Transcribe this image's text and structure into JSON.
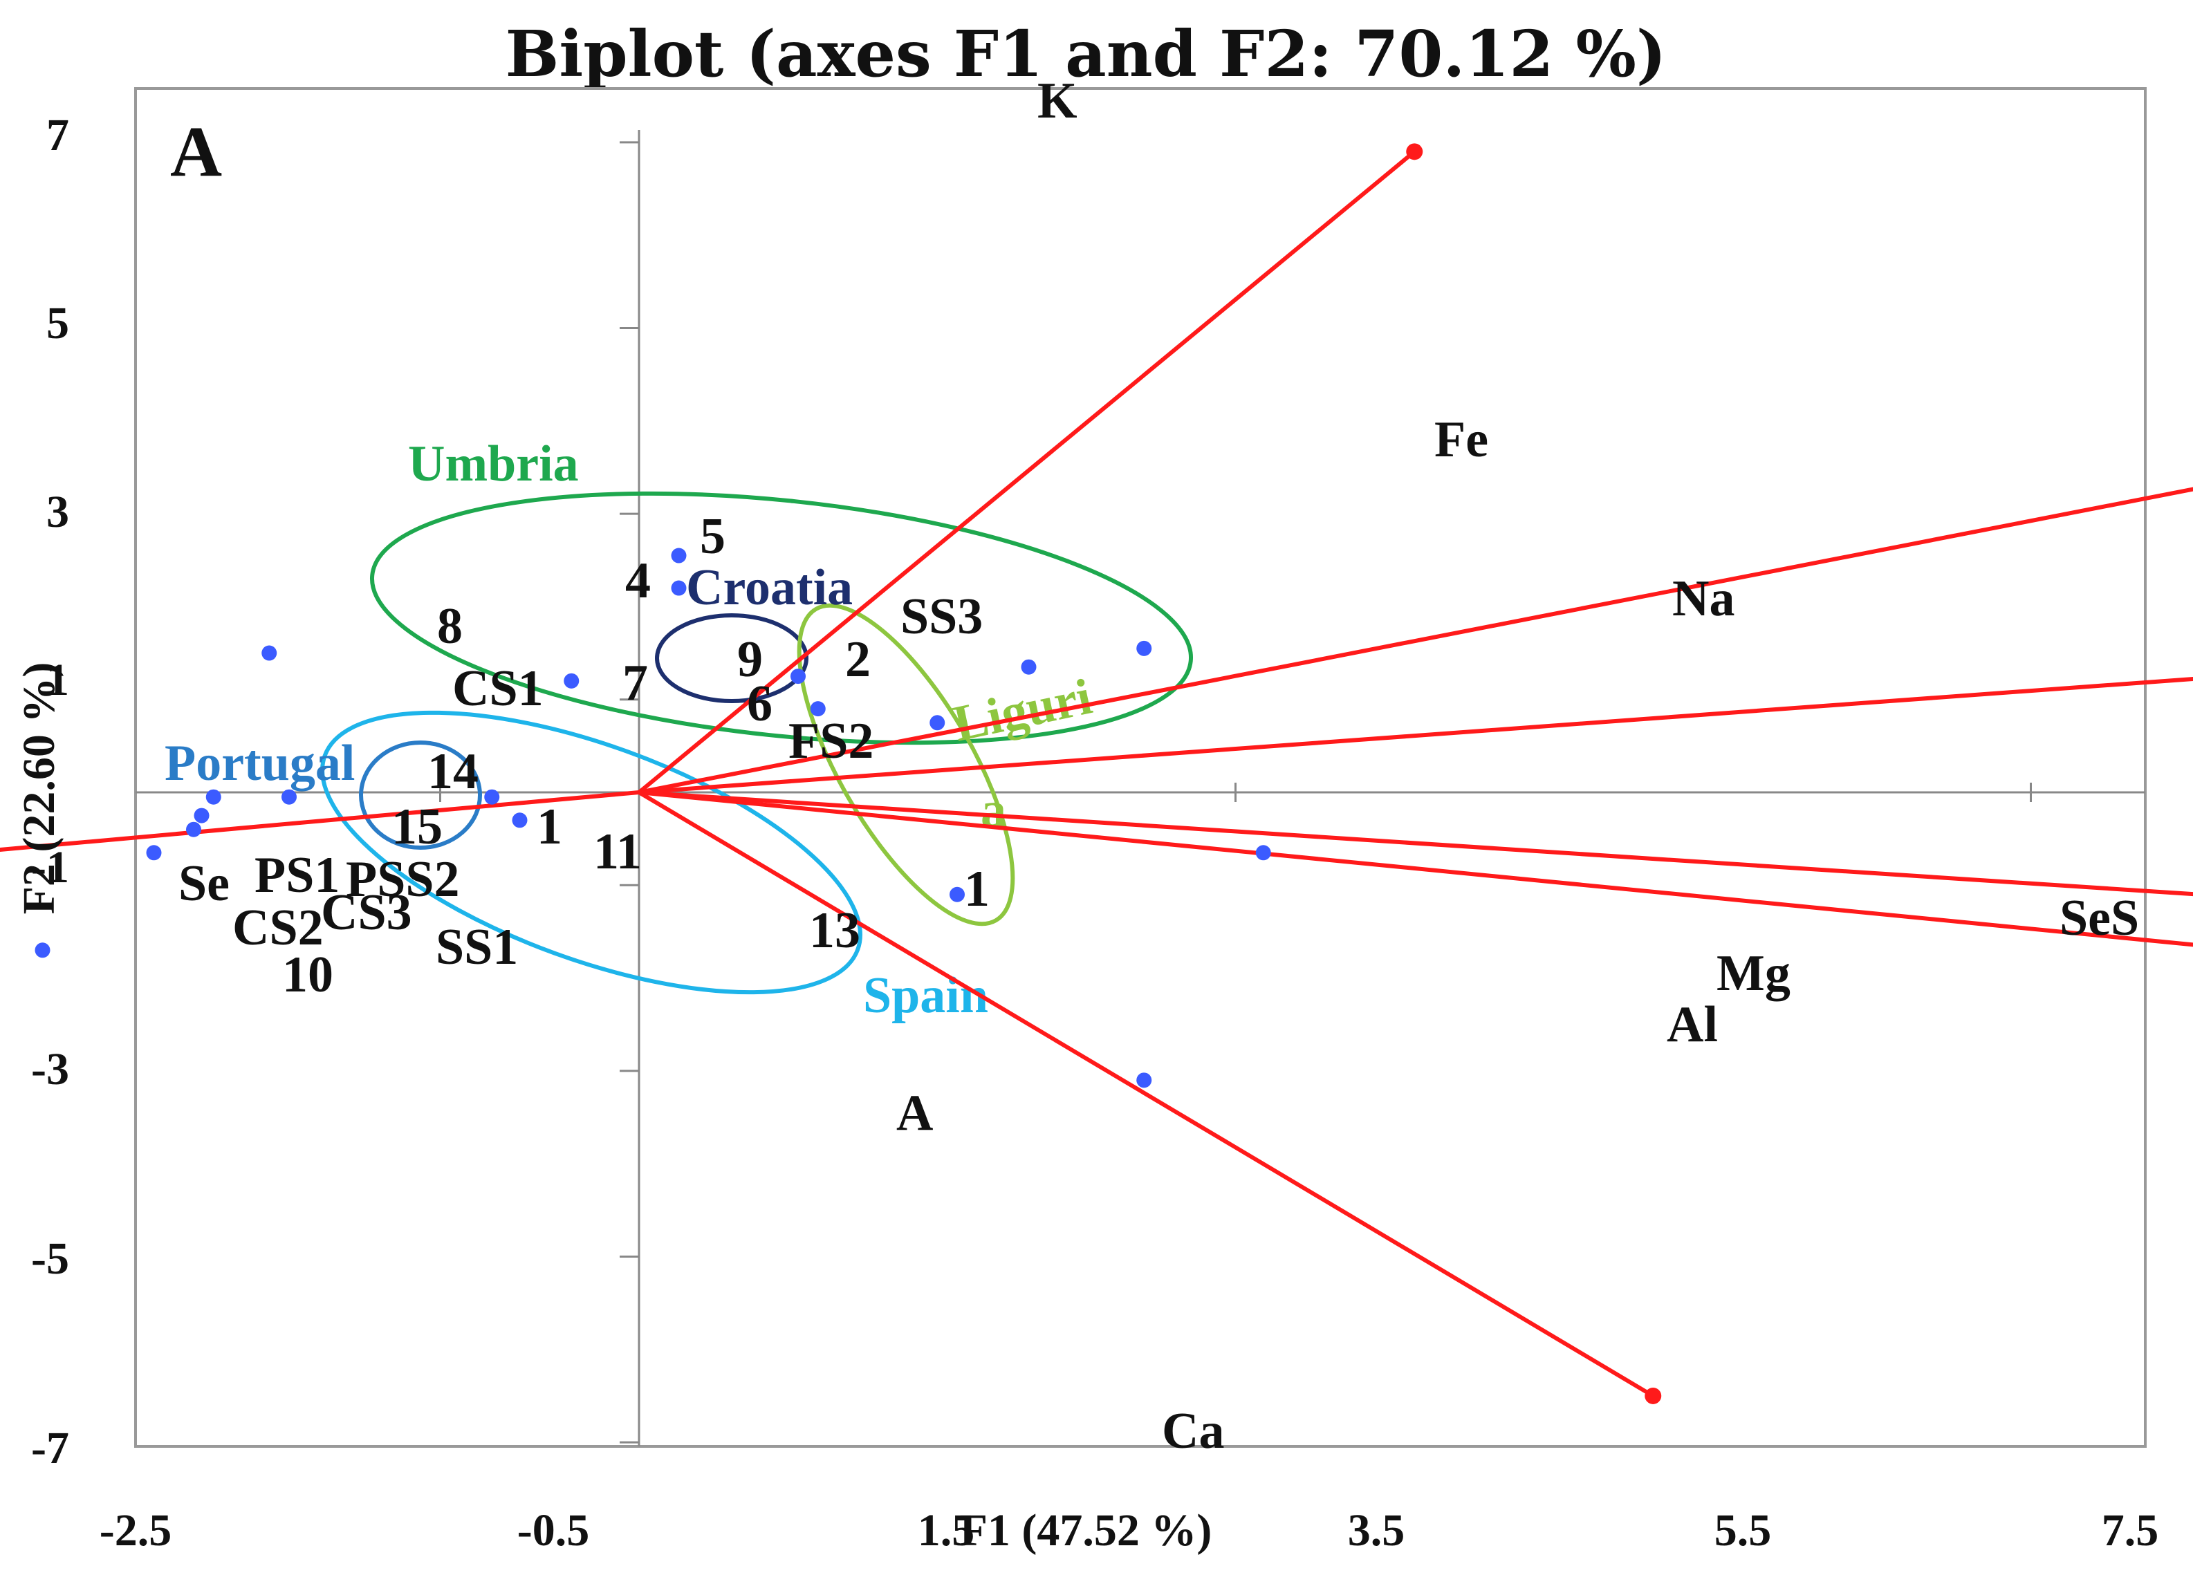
{
  "chart_data": {
    "type": "scatter",
    "subtype": "biplot",
    "title": "Biplot (axes F1 and F2: 70.12 %)",
    "panel_letter": "A",
    "xlabel": "F1 (47.52 %)",
    "ylabel": "F2 (22.60 %)",
    "xlim": [
      -2.5,
      7.5
    ],
    "ylim": [
      -7,
      7.5
    ],
    "x_ticks": [
      -2.5,
      -0.5,
      1.5,
      3.5,
      5.5,
      7.5
    ],
    "x_tick_labels": [
      "-2.5",
      "-0.5",
      "1.5",
      "3.5",
      "5.5",
      "7.5"
    ],
    "y_ticks": [
      -7,
      -5,
      -3,
      -1,
      1,
      3,
      5,
      7
    ],
    "y_tick_labels": [
      "-7",
      "-5",
      "-3",
      "-1",
      "1",
      "3",
      "5",
      "7"
    ],
    "grid": false,
    "colors": {
      "variables": "#ff1a1a",
      "observations": "#3b5bff",
      "axes": "#888888",
      "frame": "#999999"
    },
    "variables": [
      {
        "name": "K",
        "x": 1.95,
        "y": 6.9
      },
      {
        "name": "Fe",
        "x": 3.95,
        "y": 3.3
      },
      {
        "name": "Na",
        "x": 5.12,
        "y": 1.6
      },
      {
        "name": "Mg",
        "x": 5.35,
        "y": -1.5
      },
      {
        "name": "Al",
        "x": 5.12,
        "y": -2.15
      },
      {
        "name": "Ca",
        "x": 2.55,
        "y": -6.5
      },
      {
        "name": "Se",
        "x": -2.08,
        "y": -0.8
      }
    ],
    "observations": [
      {
        "label": "5",
        "x": 0.1,
        "y": 2.55
      },
      {
        "label": "4",
        "x": 0.1,
        "y": 2.2
      },
      {
        "label": "SS3",
        "x": 1.27,
        "y": 1.55
      },
      {
        "label": "8",
        "x": -0.93,
        "y": 1.5
      },
      {
        "label": "9",
        "x": 0.4,
        "y": 1.25
      },
      {
        "label": "2",
        "x": 0.98,
        "y": 1.35
      },
      {
        "label": "7",
        "x": -0.17,
        "y": 1.2
      },
      {
        "label": "CS1",
        "x": null,
        "y": null
      },
      {
        "label": "6",
        "x": 0.45,
        "y": 0.9
      },
      {
        "label": "FS2",
        "x": 0.75,
        "y": 0.75
      },
      {
        "label": "14",
        "x": -1.07,
        "y": -0.05
      },
      {
        "label": "",
        "x": -0.88,
        "y": -0.05
      },
      {
        "label": "",
        "x": -1.1,
        "y": -0.25
      },
      {
        "label": "15",
        "x": -1.12,
        "y": -0.4
      },
      {
        "label": "1",
        "x": -0.37,
        "y": -0.05
      },
      {
        "label": "11",
        "x": -0.3,
        "y": -0.3
      },
      {
        "label": "PSS2",
        "x": -1.22,
        "y": -0.65
      },
      {
        "label": "",
        "x": -1.95,
        "y": -0.65
      },
      {
        "label": "PS1",
        "x": -1.72,
        "y": -0.65
      },
      {
        "label": "CS2",
        "x": -1.72,
        "y": -0.95
      },
      {
        "label": "10",
        "x": -1.5,
        "y": -1.7
      },
      {
        "label": "CS3",
        "x": null,
        "y": null
      },
      {
        "label": "SS1",
        "x": null,
        "y": null
      },
      {
        "label": "13",
        "x": 0.8,
        "y": -1.1
      },
      {
        "label": "1",
        "x": 1.57,
        "y": -0.65
      },
      {
        "label": "A",
        "x": 1.27,
        "y": -3.1
      },
      {
        "label": "SeS",
        "x": 7.4,
        "y": -1.0
      }
    ],
    "groups": [
      {
        "name": "Umbria",
        "color": "#1ea84e"
      },
      {
        "name": "Croatia",
        "color": "#1d2f6e"
      },
      {
        "name": "Liguri",
        "color": "#8dc63f"
      },
      {
        "name": "a",
        "color": "#8dc63f"
      },
      {
        "name": "Portugal",
        "color": "#2a7cc7"
      },
      {
        "name": "Spain",
        "color": "#1eb4ea"
      }
    ]
  }
}
